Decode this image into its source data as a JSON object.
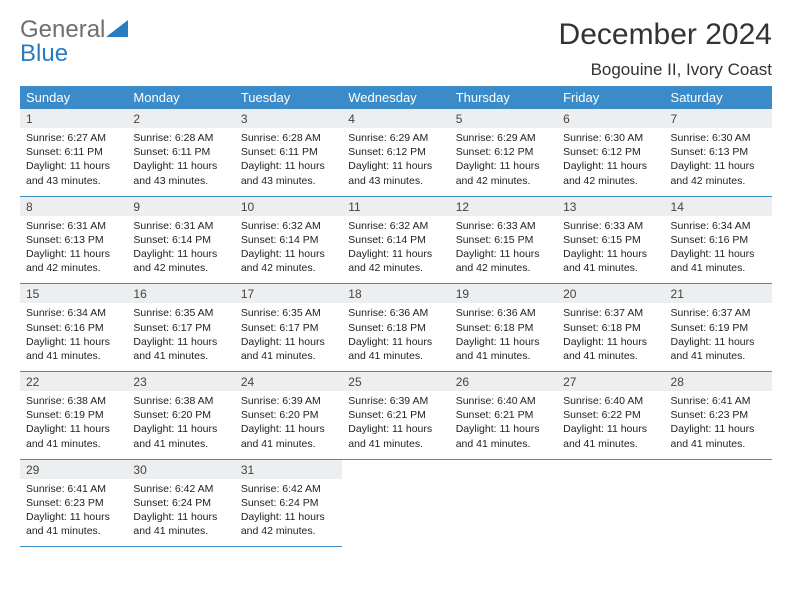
{
  "brand": {
    "part1": "General",
    "part2": "Blue",
    "color_gray": "#6f6f6f",
    "color_blue": "#2a7bbf"
  },
  "title": "December 2024",
  "location": "Bogouine II, Ivory Coast",
  "header_bg": "#3b8bc8",
  "daynum_bg": "#eceef0",
  "day_names": [
    "Sunday",
    "Monday",
    "Tuesday",
    "Wednesday",
    "Thursday",
    "Friday",
    "Saturday"
  ],
  "days": [
    {
      "n": "1",
      "sr": "6:27 AM",
      "ss": "6:11 PM",
      "dl": "11 hours and 43 minutes."
    },
    {
      "n": "2",
      "sr": "6:28 AM",
      "ss": "6:11 PM",
      "dl": "11 hours and 43 minutes."
    },
    {
      "n": "3",
      "sr": "6:28 AM",
      "ss": "6:11 PM",
      "dl": "11 hours and 43 minutes."
    },
    {
      "n": "4",
      "sr": "6:29 AM",
      "ss": "6:12 PM",
      "dl": "11 hours and 43 minutes."
    },
    {
      "n": "5",
      "sr": "6:29 AM",
      "ss": "6:12 PM",
      "dl": "11 hours and 42 minutes."
    },
    {
      "n": "6",
      "sr": "6:30 AM",
      "ss": "6:12 PM",
      "dl": "11 hours and 42 minutes."
    },
    {
      "n": "7",
      "sr": "6:30 AM",
      "ss": "6:13 PM",
      "dl": "11 hours and 42 minutes."
    },
    {
      "n": "8",
      "sr": "6:31 AM",
      "ss": "6:13 PM",
      "dl": "11 hours and 42 minutes."
    },
    {
      "n": "9",
      "sr": "6:31 AM",
      "ss": "6:14 PM",
      "dl": "11 hours and 42 minutes."
    },
    {
      "n": "10",
      "sr": "6:32 AM",
      "ss": "6:14 PM",
      "dl": "11 hours and 42 minutes."
    },
    {
      "n": "11",
      "sr": "6:32 AM",
      "ss": "6:14 PM",
      "dl": "11 hours and 42 minutes."
    },
    {
      "n": "12",
      "sr": "6:33 AM",
      "ss": "6:15 PM",
      "dl": "11 hours and 42 minutes."
    },
    {
      "n": "13",
      "sr": "6:33 AM",
      "ss": "6:15 PM",
      "dl": "11 hours and 41 minutes."
    },
    {
      "n": "14",
      "sr": "6:34 AM",
      "ss": "6:16 PM",
      "dl": "11 hours and 41 minutes."
    },
    {
      "n": "15",
      "sr": "6:34 AM",
      "ss": "6:16 PM",
      "dl": "11 hours and 41 minutes."
    },
    {
      "n": "16",
      "sr": "6:35 AM",
      "ss": "6:17 PM",
      "dl": "11 hours and 41 minutes."
    },
    {
      "n": "17",
      "sr": "6:35 AM",
      "ss": "6:17 PM",
      "dl": "11 hours and 41 minutes."
    },
    {
      "n": "18",
      "sr": "6:36 AM",
      "ss": "6:18 PM",
      "dl": "11 hours and 41 minutes."
    },
    {
      "n": "19",
      "sr": "6:36 AM",
      "ss": "6:18 PM",
      "dl": "11 hours and 41 minutes."
    },
    {
      "n": "20",
      "sr": "6:37 AM",
      "ss": "6:18 PM",
      "dl": "11 hours and 41 minutes."
    },
    {
      "n": "21",
      "sr": "6:37 AM",
      "ss": "6:19 PM",
      "dl": "11 hours and 41 minutes."
    },
    {
      "n": "22",
      "sr": "6:38 AM",
      "ss": "6:19 PM",
      "dl": "11 hours and 41 minutes."
    },
    {
      "n": "23",
      "sr": "6:38 AM",
      "ss": "6:20 PM",
      "dl": "11 hours and 41 minutes."
    },
    {
      "n": "24",
      "sr": "6:39 AM",
      "ss": "6:20 PM",
      "dl": "11 hours and 41 minutes."
    },
    {
      "n": "25",
      "sr": "6:39 AM",
      "ss": "6:21 PM",
      "dl": "11 hours and 41 minutes."
    },
    {
      "n": "26",
      "sr": "6:40 AM",
      "ss": "6:21 PM",
      "dl": "11 hours and 41 minutes."
    },
    {
      "n": "27",
      "sr": "6:40 AM",
      "ss": "6:22 PM",
      "dl": "11 hours and 41 minutes."
    },
    {
      "n": "28",
      "sr": "6:41 AM",
      "ss": "6:23 PM",
      "dl": "11 hours and 41 minutes."
    },
    {
      "n": "29",
      "sr": "6:41 AM",
      "ss": "6:23 PM",
      "dl": "11 hours and 41 minutes."
    },
    {
      "n": "30",
      "sr": "6:42 AM",
      "ss": "6:24 PM",
      "dl": "11 hours and 41 minutes."
    },
    {
      "n": "31",
      "sr": "6:42 AM",
      "ss": "6:24 PM",
      "dl": "11 hours and 42 minutes."
    }
  ],
  "labels": {
    "sunrise": "Sunrise:",
    "sunset": "Sunset:",
    "daylight": "Daylight:"
  }
}
